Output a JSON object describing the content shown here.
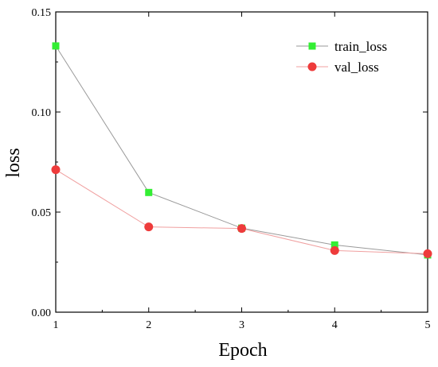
{
  "chart_data": {
    "type": "line",
    "xlabel": "Epoch",
    "ylabel": "loss",
    "xlim": [
      1,
      5
    ],
    "ylim": [
      0.0,
      0.15
    ],
    "x_ticks": [
      1,
      2,
      3,
      4,
      5
    ],
    "x_tick_labels": [
      "1",
      "2",
      "3",
      "4",
      "5"
    ],
    "y_ticks": [
      0.0,
      0.05,
      0.1,
      0.15
    ],
    "y_tick_labels": [
      "0.00",
      "0.05",
      "0.10",
      "0.15"
    ],
    "grid": false,
    "legend_position": "top-right",
    "x": [
      1,
      2,
      3,
      4,
      5
    ],
    "series": [
      {
        "name": "train_loss",
        "values": [
          0.133,
          0.0598,
          0.042,
          0.0336,
          0.0286
        ],
        "marker": "square",
        "marker_color": "#33ee33",
        "line_color": "#9a9a9a"
      },
      {
        "name": "val_loss",
        "values": [
          0.0712,
          0.0426,
          0.0418,
          0.0308,
          0.0292
        ],
        "marker": "circle",
        "marker_color": "#ee3b3b",
        "line_color": "#f0a0a0"
      }
    ]
  }
}
